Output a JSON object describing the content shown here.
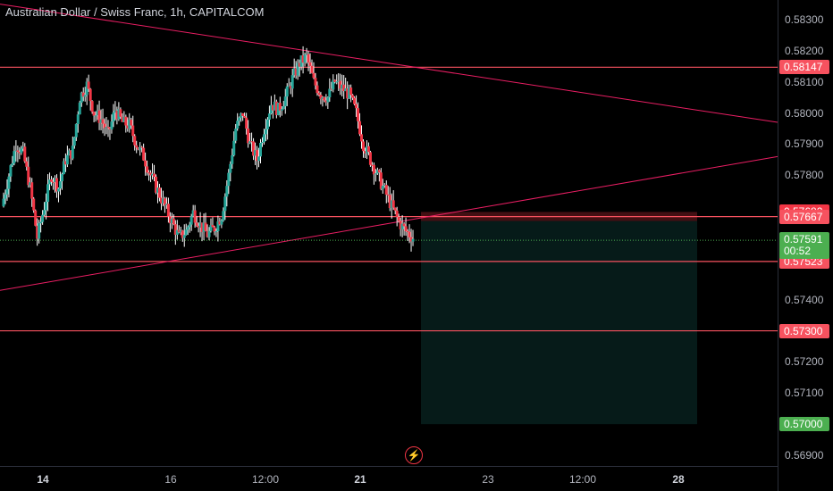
{
  "title": "Australian Dollar / Swiss Franc, 1h, CAPITALCOM",
  "colors": {
    "up": "#26a69a",
    "down": "#f23645",
    "wick_up": "#ffffff",
    "wick_down": "#ffffff",
    "hline": "#f7525f",
    "trend": "#e91e63",
    "stop_zone": "rgba(242,54,69,0.28)",
    "target_zone": "rgba(38,166,154,0.16)",
    "last_price": "#4caf50"
  },
  "chart_data": {
    "type": "candlestick",
    "symbol": "AUDCHF",
    "interval": "1h",
    "ylim": [
      0.5685,
      0.5834
    ],
    "yticks": [
      "0.58300",
      "0.58200",
      "0.58100",
      "0.58000",
      "0.57900",
      "0.57800",
      "0.57400",
      "0.57200",
      "0.57100",
      "0.56900"
    ],
    "xticks": [
      {
        "label": "14",
        "bold": true
      },
      {
        "label": "16",
        "bold": false
      },
      {
        "label": "12:00",
        "bold": false
      },
      {
        "label": "21",
        "bold": true
      },
      {
        "label": "23",
        "bold": false
      },
      {
        "label": "12:00",
        "bold": false
      },
      {
        "label": "28",
        "bold": true
      }
    ],
    "horizontal_lines": [
      0.58147,
      0.57667,
      0.57523,
      0.573
    ],
    "trendlines": [
      {
        "from": [
          0,
          0.5835
        ],
        "to": [
          1,
          0.5797
        ]
      },
      {
        "from": [
          0,
          0.5743
        ],
        "to": [
          1,
          0.5786
        ]
      }
    ],
    "position": {
      "entry": 0.57653,
      "stop": 0.57682,
      "target": 0.57
    },
    "last_price": 0.57591,
    "countdown": "00:52",
    "price_badges": [
      {
        "value": "0.58147",
        "bg": "#f7525f",
        "fg": "#ffffff"
      },
      {
        "value": "0.57682",
        "bg": "#f23645",
        "fg": "#ffffff"
      },
      {
        "value": "0.57667",
        "bg": "#f7525f",
        "fg": "#ffffff"
      },
      {
        "value": "0.57562",
        "bg": "#363a45",
        "fg": "#d1d4dc"
      },
      {
        "value": "0.57523",
        "bg": "#f7525f",
        "fg": "#ffffff"
      },
      {
        "value": "0.57300",
        "bg": "#f7525f",
        "fg": "#ffffff"
      },
      {
        "value": "0.57000",
        "bg": "#4caf50",
        "fg": "#ffffff"
      }
    ],
    "close_path": [
      0.577,
      0.578,
      0.579,
      0.5787,
      0.5776,
      0.576,
      0.577,
      0.578,
      0.5776,
      0.5785,
      0.5788,
      0.5805,
      0.5809,
      0.58,
      0.5798,
      0.5793,
      0.5801,
      0.5797,
      0.5796,
      0.579,
      0.5786,
      0.578,
      0.5775,
      0.577,
      0.5765,
      0.576,
      0.5762,
      0.5768,
      0.5764,
      0.5761,
      0.5763,
      0.5767,
      0.578,
      0.5795,
      0.58,
      0.579,
      0.5785,
      0.5795,
      0.5803,
      0.5801,
      0.5805,
      0.5811,
      0.5816,
      0.5818,
      0.581,
      0.5806,
      0.5805,
      0.581,
      0.5808,
      0.5806,
      0.58,
      0.579,
      0.5785,
      0.578,
      0.5775,
      0.577,
      0.5765,
      0.5762,
      0.576
    ]
  }
}
